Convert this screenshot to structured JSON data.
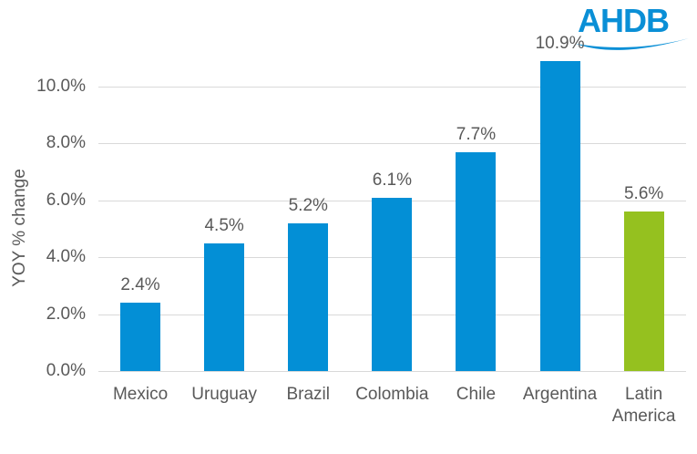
{
  "logo": {
    "text": "AHDB"
  },
  "chart_data": {
    "type": "bar",
    "title": "",
    "xlabel": "",
    "ylabel": "YOY % change",
    "ylim": [
      0,
      11
    ],
    "yticks": [
      "0.0%",
      "2.0%",
      "4.0%",
      "6.0%",
      "8.0%",
      "10.0%"
    ],
    "grid": true,
    "legend": null,
    "categories": [
      "Mexico",
      "Uruguay",
      "Brazil",
      "Colombia",
      "Chile",
      "Argentina",
      "Latin America"
    ],
    "values": [
      2.4,
      4.5,
      5.2,
      6.1,
      7.7,
      10.9,
      5.6
    ],
    "data_labels": [
      "2.4%",
      "4.5%",
      "5.2%",
      "6.1%",
      "7.7%",
      "10.9%",
      "5.6%"
    ],
    "colors": [
      "#038fd6",
      "#038fd6",
      "#038fd6",
      "#038fd6",
      "#038fd6",
      "#038fd6",
      "#95c11f"
    ]
  }
}
